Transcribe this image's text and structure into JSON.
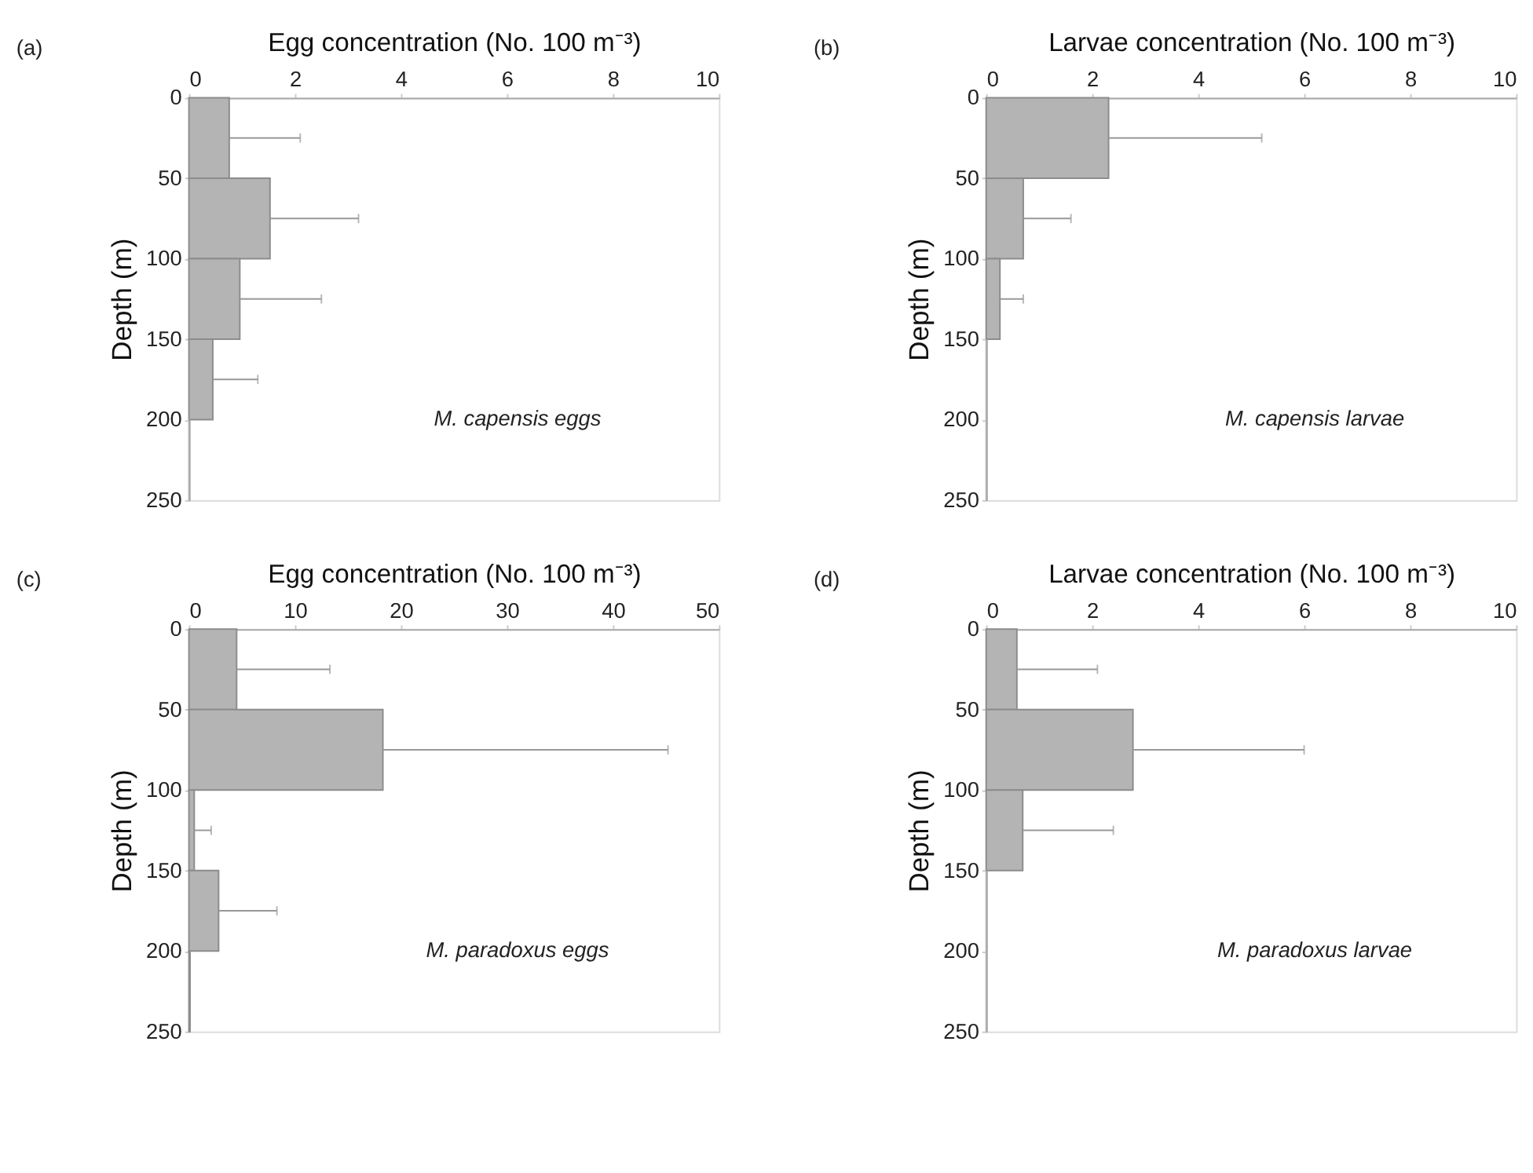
{
  "chart_data": [
    {
      "type": "histogram",
      "orientation": "horizontal",
      "title": "(a)",
      "xlabel": "Egg concentration (No. 100 m⁻³)",
      "ylabel": "Depth (m)",
      "annotations": [
        "M. capensis eggs"
      ],
      "color": "#b4b4b4",
      "bins": [
        0,
        50,
        100,
        150,
        200,
        250
      ],
      "values": [
        0.76,
        1.53,
        0.96,
        0.45,
        0
      ],
      "errors": [
        [
          0.76,
          2.1
        ],
        [
          1.53,
          3.2
        ],
        [
          0.96,
          2.5
        ],
        [
          0.45,
          1.3
        ],
        null
      ],
      "xlim": [
        0,
        10
      ],
      "xticks": [
        0,
        2,
        4,
        6,
        8,
        10
      ],
      "ylim": [
        250,
        0
      ],
      "yticks": [
        0,
        50,
        100,
        150,
        200,
        250
      ]
    },
    {
      "type": "histogram",
      "orientation": "horizontal",
      "title": "(b)",
      "xlabel": "Larvae concentration (No. 100 m⁻³)",
      "ylabel": "Depth (m)",
      "annotations": [
        "M. capensis larvae"
      ],
      "color": "#b4b4b4",
      "bins": [
        0,
        50,
        100,
        150,
        200,
        250
      ],
      "values": [
        2.31,
        0.7,
        0.26,
        0,
        0
      ],
      "errors": [
        [
          2.31,
          5.2
        ],
        [
          0.7,
          1.6
        ],
        [
          0.26,
          0.7
        ],
        null,
        null
      ],
      "xlim": [
        0,
        10
      ],
      "xticks": [
        0,
        2,
        4,
        6,
        8,
        10
      ],
      "ylim": [
        250,
        0
      ],
      "yticks": [
        0,
        50,
        100,
        150,
        200,
        250
      ]
    },
    {
      "type": "histogram",
      "orientation": "horizontal",
      "title": "(c)",
      "xlabel": "Egg concentration (No. 100 m⁻³)",
      "ylabel": "Depth (m)",
      "annotations": [
        "M. paradoxus eggs"
      ],
      "color": "#b4b4b4",
      "bins": [
        0,
        50,
        100,
        150,
        200,
        250
      ],
      "values": [
        4.5,
        18.3,
        0.5,
        2.8,
        0.1
      ],
      "errors": [
        [
          4.5,
          13.3
        ],
        [
          18.3,
          45.2
        ],
        [
          0.5,
          2.1
        ],
        [
          2.8,
          8.3
        ],
        null
      ],
      "xlim": [
        0,
        50
      ],
      "xticks": [
        0,
        10,
        20,
        30,
        40,
        50
      ],
      "ylim": [
        250,
        0
      ],
      "yticks": [
        0,
        50,
        100,
        150,
        200,
        250
      ]
    },
    {
      "type": "histogram",
      "orientation": "horizontal",
      "title": "(d)",
      "xlabel": "Larvae concentration (No. 100 m⁻³)",
      "ylabel": "Depth (m)",
      "annotations": [
        "M. paradoxus larvae"
      ],
      "color": "#b4b4b4",
      "bins": [
        0,
        50,
        100,
        150,
        200,
        250
      ],
      "values": [
        0.58,
        2.77,
        0.69,
        0,
        0
      ],
      "errors": [
        [
          0.58,
          2.1
        ],
        [
          2.77,
          6.0
        ],
        [
          0.69,
          2.4
        ],
        null,
        null
      ],
      "xlim": [
        0,
        10
      ],
      "xticks": [
        0,
        2,
        4,
        6,
        8,
        10
      ],
      "ylim": [
        250,
        0
      ],
      "yticks": [
        0,
        50,
        100,
        150,
        200,
        250
      ]
    }
  ]
}
